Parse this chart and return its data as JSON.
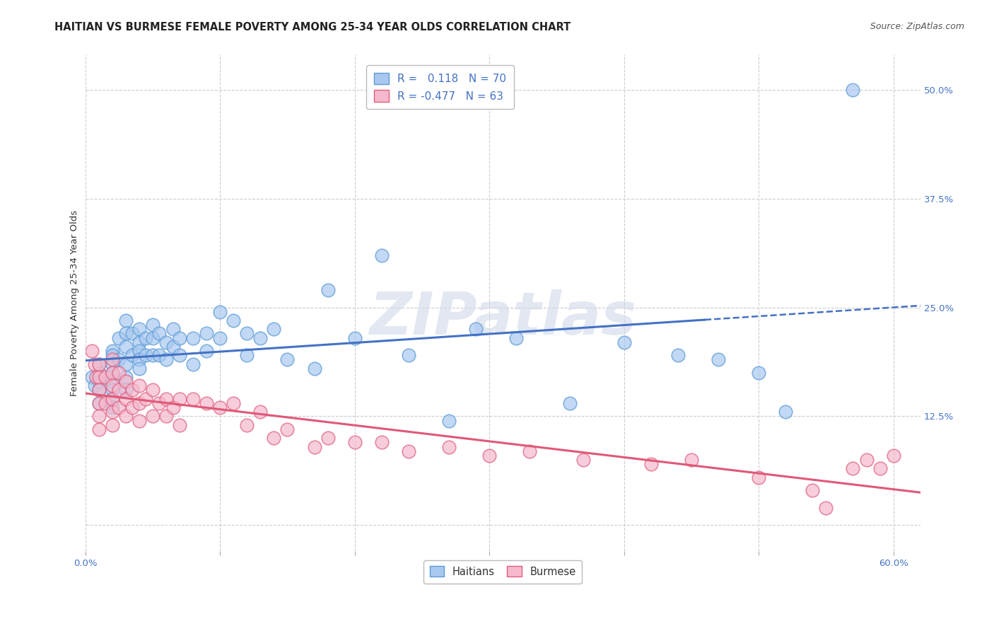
{
  "title": "HAITIAN VS BURMESE FEMALE POVERTY AMONG 25-34 YEAR OLDS CORRELATION CHART",
  "source": "Source: ZipAtlas.com",
  "ylabel": "Female Poverty Among 25-34 Year Olds",
  "xlim": [
    0.0,
    0.62
  ],
  "ylim": [
    -0.03,
    0.54
  ],
  "yticks_right": [
    0.0,
    0.125,
    0.25,
    0.375,
    0.5
  ],
  "ytick_right_labels": [
    "",
    "12.5%",
    "25.0%",
    "37.5%",
    "50.0%"
  ],
  "haitian_color": "#a8c8f0",
  "burmese_color": "#f5b8cc",
  "haitian_edge_color": "#5b9bd5",
  "burmese_edge_color": "#e06080",
  "haitian_line_color": "#4472c4",
  "burmese_line_color": "#e05878",
  "R_haitian": 0.118,
  "N_haitian": 70,
  "R_burmese": -0.477,
  "N_burmese": 63,
  "background_color": "#ffffff",
  "grid_color": "#cccccc",
  "watermark": "ZIPatlas",
  "haitian_scatter_x": [
    0.005,
    0.007,
    0.01,
    0.01,
    0.01,
    0.01,
    0.01,
    0.02,
    0.02,
    0.02,
    0.02,
    0.02,
    0.02,
    0.02,
    0.02,
    0.025,
    0.025,
    0.03,
    0.03,
    0.03,
    0.03,
    0.03,
    0.03,
    0.035,
    0.035,
    0.04,
    0.04,
    0.04,
    0.04,
    0.04,
    0.045,
    0.045,
    0.05,
    0.05,
    0.05,
    0.055,
    0.055,
    0.06,
    0.06,
    0.065,
    0.065,
    0.07,
    0.07,
    0.08,
    0.08,
    0.09,
    0.09,
    0.1,
    0.1,
    0.11,
    0.12,
    0.12,
    0.13,
    0.14,
    0.15,
    0.17,
    0.18,
    0.2,
    0.22,
    0.24,
    0.27,
    0.29,
    0.32,
    0.36,
    0.4,
    0.44,
    0.47,
    0.5,
    0.52,
    0.57
  ],
  "haitian_scatter_y": [
    0.17,
    0.16,
    0.185,
    0.175,
    0.165,
    0.155,
    0.14,
    0.2,
    0.195,
    0.185,
    0.175,
    0.165,
    0.155,
    0.145,
    0.135,
    0.215,
    0.19,
    0.235,
    0.22,
    0.205,
    0.185,
    0.17,
    0.155,
    0.22,
    0.195,
    0.225,
    0.21,
    0.2,
    0.19,
    0.18,
    0.215,
    0.195,
    0.23,
    0.215,
    0.195,
    0.22,
    0.195,
    0.21,
    0.19,
    0.225,
    0.205,
    0.215,
    0.195,
    0.215,
    0.185,
    0.22,
    0.2,
    0.245,
    0.215,
    0.235,
    0.22,
    0.195,
    0.215,
    0.225,
    0.19,
    0.18,
    0.27,
    0.215,
    0.31,
    0.195,
    0.12,
    0.225,
    0.215,
    0.14,
    0.21,
    0.195,
    0.19,
    0.175,
    0.13,
    0.5
  ],
  "burmese_scatter_x": [
    0.005,
    0.007,
    0.008,
    0.01,
    0.01,
    0.01,
    0.01,
    0.01,
    0.01,
    0.015,
    0.015,
    0.02,
    0.02,
    0.02,
    0.02,
    0.02,
    0.02,
    0.025,
    0.025,
    0.025,
    0.03,
    0.03,
    0.03,
    0.035,
    0.035,
    0.04,
    0.04,
    0.04,
    0.045,
    0.05,
    0.05,
    0.055,
    0.06,
    0.06,
    0.065,
    0.07,
    0.07,
    0.08,
    0.09,
    0.1,
    0.11,
    0.12,
    0.13,
    0.14,
    0.15,
    0.17,
    0.18,
    0.2,
    0.22,
    0.24,
    0.27,
    0.3,
    0.33,
    0.37,
    0.42,
    0.45,
    0.5,
    0.54,
    0.55,
    0.57,
    0.58,
    0.59,
    0.6
  ],
  "burmese_scatter_y": [
    0.2,
    0.185,
    0.17,
    0.185,
    0.17,
    0.155,
    0.14,
    0.125,
    0.11,
    0.17,
    0.14,
    0.19,
    0.175,
    0.16,
    0.145,
    0.13,
    0.115,
    0.175,
    0.155,
    0.135,
    0.165,
    0.145,
    0.125,
    0.155,
    0.135,
    0.16,
    0.14,
    0.12,
    0.145,
    0.155,
    0.125,
    0.14,
    0.145,
    0.125,
    0.135,
    0.145,
    0.115,
    0.145,
    0.14,
    0.135,
    0.14,
    0.115,
    0.13,
    0.1,
    0.11,
    0.09,
    0.1,
    0.095,
    0.095,
    0.085,
    0.09,
    0.08,
    0.085,
    0.075,
    0.07,
    0.075,
    0.055,
    0.04,
    0.02,
    0.065,
    0.075,
    0.065,
    0.08
  ]
}
